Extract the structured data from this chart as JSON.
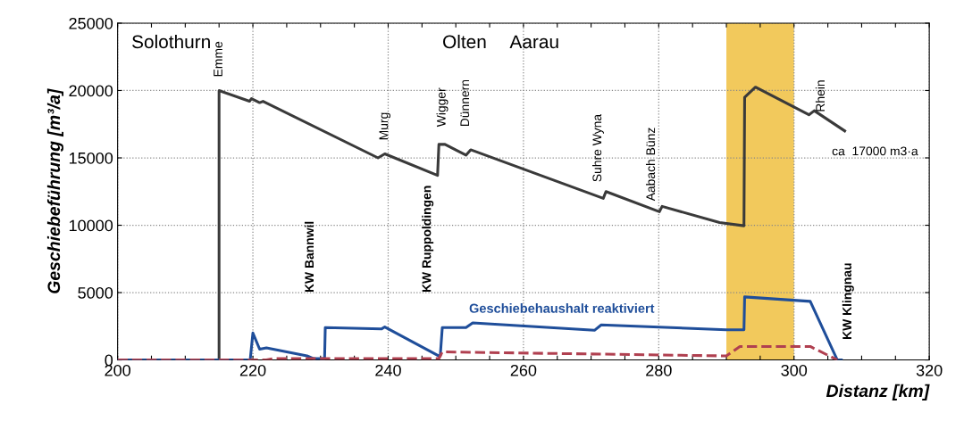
{
  "chart_data": {
    "type": "line",
    "xlabel": "Distanz [km]",
    "ylabel": "Geschiebeführung [m³/a]",
    "xlim": [
      200,
      320
    ],
    "ylim": [
      0,
      25000
    ],
    "xticks": [
      200,
      {
        "value": 205,
        "label": null
      },
      {
        "value": 210,
        "label": null
      },
      {
        "value": 215,
        "label": null
      },
      220,
      {
        "value": 225,
        "label": null
      },
      {
        "value": 230,
        "label": null
      },
      {
        "value": 235,
        "label": null
      },
      240,
      {
        "value": 245,
        "label": null
      },
      {
        "value": 250,
        "label": null
      },
      {
        "value": 255,
        "label": null
      },
      260,
      {
        "value": 265,
        "label": null
      },
      {
        "value": 270,
        "label": null
      },
      {
        "value": 275,
        "label": null
      },
      280,
      {
        "value": 285,
        "label": null
      },
      {
        "value": 290,
        "label": null
      },
      {
        "value": 295,
        "label": null
      },
      300,
      {
        "value": 305,
        "label": null
      },
      {
        "value": 310,
        "label": null
      },
      {
        "value": 315,
        "label": null
      },
      320
    ],
    "yticks": [
      0,
      5000,
      10000,
      15000,
      20000,
      25000
    ],
    "grid": true,
    "marker": "none",
    "series": [
      {
        "color": "#3a3a3a",
        "line_style": "solid",
        "x": [
          200,
          215,
          215,
          219.5,
          219.8,
          221,
          221.5,
          238.5,
          239.5,
          247.3,
          247.5,
          248.4,
          251.5,
          252.2,
          271.8,
          272.2,
          280.1,
          280.5,
          289,
          292.6,
          292.7,
          294.3,
          302.2,
          303,
          307.5
        ],
        "values": [
          0,
          0,
          20000,
          19200,
          19400,
          19100,
          19200,
          15000,
          15300,
          13700,
          16000,
          16000,
          15200,
          15600,
          12000,
          12500,
          11000,
          11400,
          10200,
          9960,
          19500,
          20250,
          18200,
          18500,
          17000
        ]
      },
      {
        "color": "#1f4e9a",
        "line_style": "solid",
        "x": [
          200,
          219.6,
          220,
          221,
          222,
          228,
          229,
          230.6,
          230.7,
          239,
          239.5,
          247.5,
          247.7,
          248,
          251.5,
          252.5,
          270.5,
          271.5,
          290,
          292.6,
          292.7,
          302.4,
          306.4,
          307
        ],
        "values": [
          0,
          0,
          2000,
          800,
          900,
          300,
          100,
          100,
          2400,
          2300,
          2450,
          300,
          300,
          2400,
          2400,
          2750,
          2200,
          2600,
          2240,
          2240,
          4680,
          4350,
          0,
          0
        ]
      },
      {
        "color": "#b04050",
        "line_style": "dashed",
        "x": [
          200,
          222,
          223,
          247.5,
          248,
          290,
          292,
          302.4,
          306.4
        ],
        "values": [
          0,
          0,
          100,
          100,
          600,
          300,
          1000,
          1000,
          0
        ]
      }
    ],
    "bands": [
      {
        "axis": "x",
        "from": 290,
        "to": 300,
        "color": "#f0c040"
      }
    ],
    "annotations": [
      "Solothurn",
      "Olten",
      "Aarau",
      "Emme",
      "Murg",
      "Wigger",
      "Dünnern",
      "Suhre Wyna",
      "Aabach Bünz",
      "Rhein",
      "KW Bannwil",
      "KW Ruppoldingen",
      "KW Klingnau",
      "Geschiebehaushalt reaktiviert",
      "ca  17000 m3·a"
    ]
  }
}
